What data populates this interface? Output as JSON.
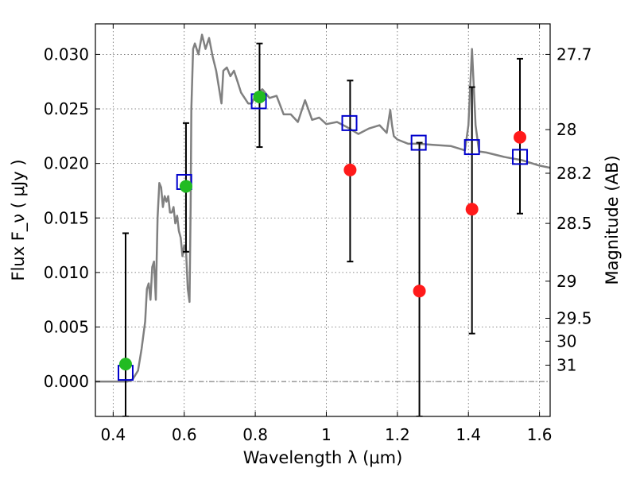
{
  "chart_data": {
    "type": "scatter",
    "xlabel": "Wavelength  λ (μm)",
    "ylabel": "Flux  F_ν  ( μJy )",
    "ylabel_right": "Magnitude (AB)",
    "xlim": [
      0.35,
      1.63
    ],
    "ylim": [
      -0.0032,
      0.0328
    ],
    "grid": true,
    "x_ticks": [
      0.4,
      0.6,
      0.8,
      1.0,
      1.2,
      1.4,
      1.6
    ],
    "x_tick_labels": [
      "0.4",
      "0.6",
      "0.8",
      "1",
      "1.2",
      "1.4",
      "1.6"
    ],
    "y_ticks": [
      0.0,
      0.005,
      0.01,
      0.015,
      0.02,
      0.025,
      0.03
    ],
    "y_tick_labels": [
      "0.000",
      "0.005",
      "0.010",
      "0.015",
      "0.020",
      "0.025",
      "0.030"
    ],
    "right_ticks": [
      {
        "label": "27.7",
        "flux": 0.03
      },
      {
        "label": "28",
        "flux": 0.0231
      },
      {
        "label": "28.2",
        "flux": 0.0191
      },
      {
        "label": "28.5",
        "flux": 0.0145
      },
      {
        "label": "29",
        "flux": 0.0092
      },
      {
        "label": "29.5",
        "flux": 0.0058
      },
      {
        "label": "30",
        "flux": 0.0037
      },
      {
        "label": "31",
        "flux": 0.0015
      }
    ],
    "model_spectrum": {
      "color": "#808080",
      "x": [
        0.35,
        0.44,
        0.455,
        0.47,
        0.48,
        0.49,
        0.495,
        0.5,
        0.505,
        0.51,
        0.515,
        0.52,
        0.525,
        0.53,
        0.535,
        0.54,
        0.545,
        0.55,
        0.555,
        0.56,
        0.565,
        0.57,
        0.575,
        0.58,
        0.585,
        0.59,
        0.595,
        0.6,
        0.605,
        0.61,
        0.615,
        0.618,
        0.62,
        0.625,
        0.63,
        0.64,
        0.65,
        0.66,
        0.67,
        0.68,
        0.69,
        0.7,
        0.705,
        0.71,
        0.72,
        0.73,
        0.74,
        0.75,
        0.76,
        0.77,
        0.78,
        0.79,
        0.8,
        0.82,
        0.84,
        0.86,
        0.88,
        0.9,
        0.92,
        0.94,
        0.96,
        0.98,
        1.0,
        1.03,
        1.06,
        1.09,
        1.12,
        1.15,
        1.17,
        1.18,
        1.185,
        1.19,
        1.2,
        1.23,
        1.26,
        1.3,
        1.35,
        1.39,
        1.4,
        1.41,
        1.42,
        1.43,
        1.45,
        1.5,
        1.55,
        1.6,
        1.63
      ],
      "y": [
        0.0,
        0.0,
        0.0002,
        0.001,
        0.003,
        0.0055,
        0.0085,
        0.009,
        0.0075,
        0.0105,
        0.011,
        0.0075,
        0.015,
        0.0182,
        0.0178,
        0.016,
        0.017,
        0.0165,
        0.017,
        0.0155,
        0.0155,
        0.016,
        0.0145,
        0.0152,
        0.0138,
        0.0132,
        0.0115,
        0.0125,
        0.012,
        0.0085,
        0.0073,
        0.016,
        0.025,
        0.0305,
        0.031,
        0.03,
        0.0318,
        0.0305,
        0.0315,
        0.0298,
        0.0285,
        0.0265,
        0.0255,
        0.0285,
        0.0288,
        0.028,
        0.0285,
        0.0275,
        0.0265,
        0.026,
        0.0255,
        0.0255,
        0.0262,
        0.0268,
        0.026,
        0.0262,
        0.0245,
        0.0245,
        0.0238,
        0.0258,
        0.024,
        0.0242,
        0.0236,
        0.0238,
        0.0233,
        0.0227,
        0.0232,
        0.0235,
        0.0228,
        0.0249,
        0.0235,
        0.0225,
        0.0222,
        0.0218,
        0.0218,
        0.0217,
        0.0216,
        0.0212,
        0.0235,
        0.0305,
        0.0235,
        0.0211,
        0.021,
        0.0206,
        0.0203,
        0.0198,
        0.0196
      ]
    },
    "series": [
      {
        "marker": "square",
        "color": "#0000cc",
        "x": [
          0.435,
          0.6,
          0.81,
          1.065,
          1.26,
          1.41,
          1.545
        ],
        "y": [
          0.0008,
          0.0183,
          0.0257,
          0.0237,
          0.0219,
          0.0215,
          0.0206
        ]
      },
      {
        "marker": "circle",
        "color": "#22bb22",
        "x": [
          0.435,
          0.605,
          0.812
        ],
        "y": [
          0.0016,
          0.0179,
          0.0261
        ]
      },
      {
        "marker": "circle",
        "color": "#ff1a1a",
        "x": [
          1.067,
          1.262,
          1.41,
          1.545
        ],
        "y": [
          0.0194,
          0.0083,
          0.0158,
          0.0224
        ]
      }
    ],
    "error_bars": {
      "color": "#000000",
      "x": [
        0.435,
        0.605,
        0.812,
        1.067,
        1.262,
        1.41,
        1.545
      ],
      "low": [
        -0.0032,
        0.0119,
        0.0215,
        0.011,
        -0.0032,
        0.0044,
        0.0154
      ],
      "high": [
        0.0136,
        0.0237,
        0.031,
        0.0276,
        0.0219,
        0.027,
        0.0296
      ]
    }
  }
}
